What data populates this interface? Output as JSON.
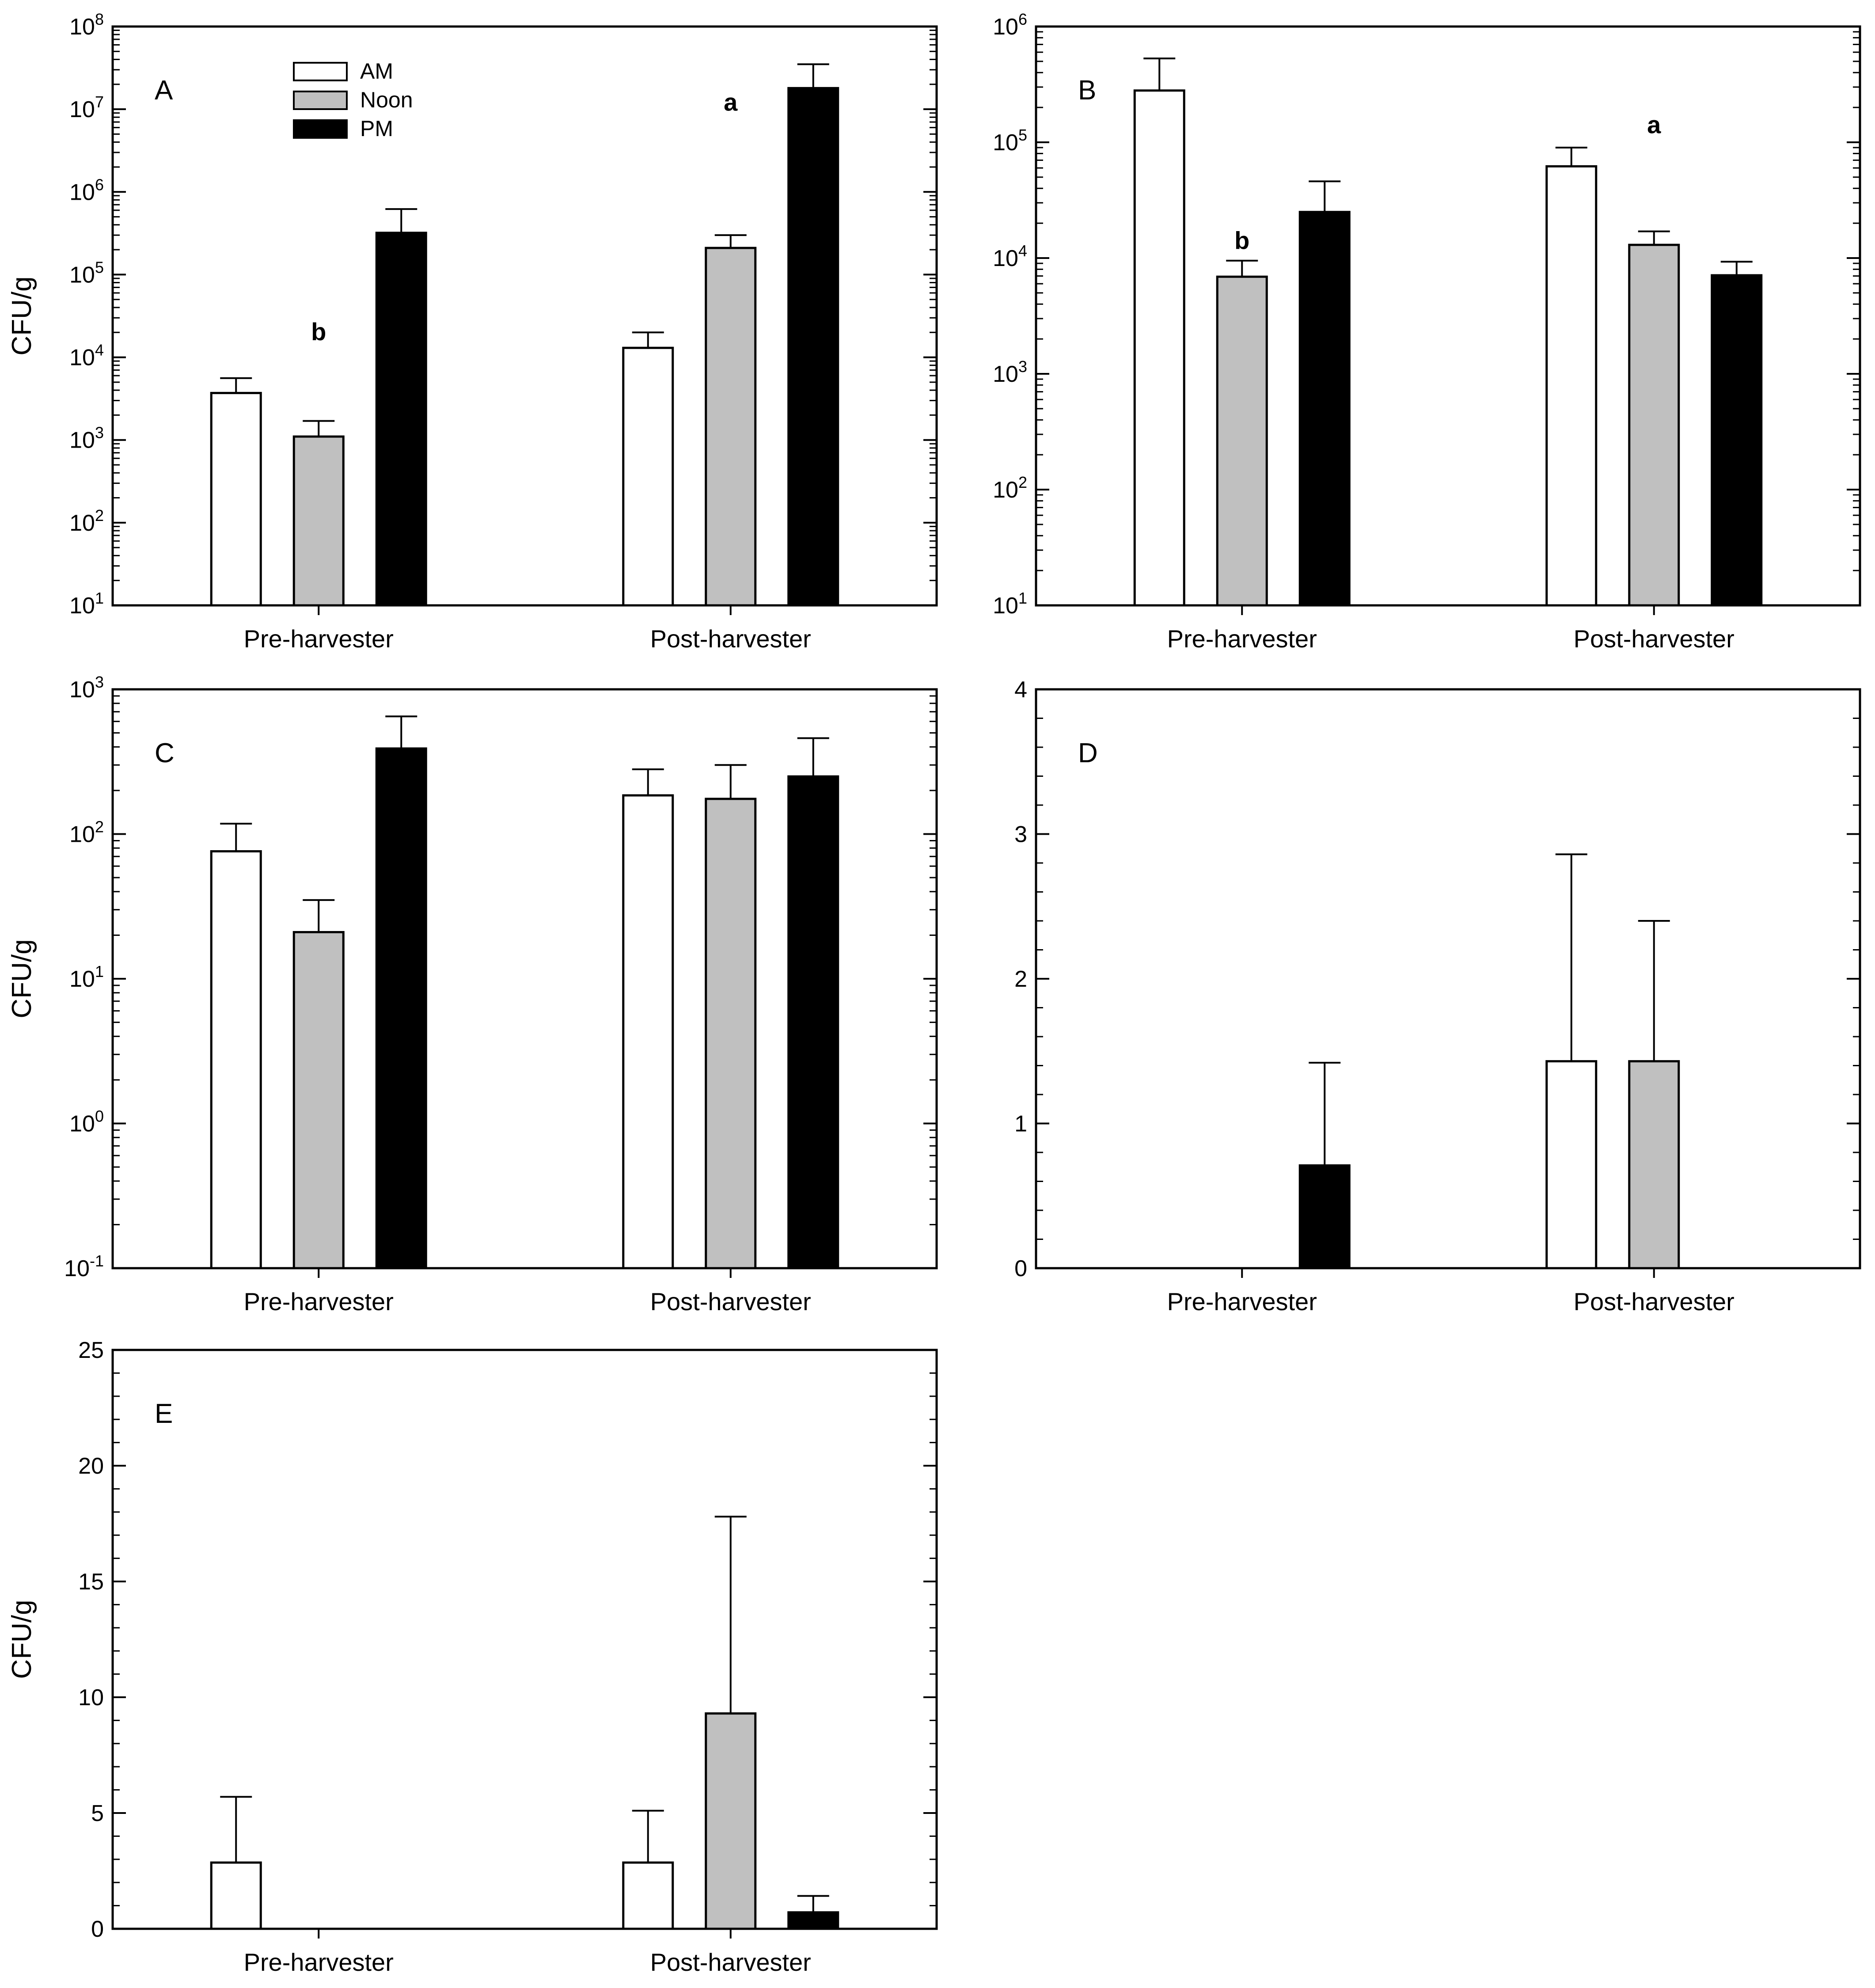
{
  "legend": {
    "position": "top-left of panel A",
    "entries": [
      {
        "label": "AM",
        "color": "#ffffff"
      },
      {
        "label": "Noon",
        "color": "#c0c0c0"
      },
      {
        "label": "PM",
        "color": "#000000"
      }
    ]
  },
  "chart_data": [
    {
      "panel": "A",
      "type": "bar",
      "scale": "log",
      "title": "A",
      "xlabel": "",
      "ylabel": "CFU/g",
      "ylim_exp": [
        1,
        8
      ],
      "y_ticks": [
        "10^1",
        "10^2",
        "10^3",
        "10^4",
        "10^5",
        "10^6",
        "10^7",
        "10^8"
      ],
      "categories": [
        "Pre-harvester",
        "Post-harvester"
      ],
      "series": [
        {
          "name": "AM",
          "values": [
            3700,
            13000
          ],
          "errors_upper": [
            5600,
            20000
          ]
        },
        {
          "name": "Noon",
          "values": [
            1100,
            210000
          ],
          "errors_upper": [
            1700,
            300000
          ]
        },
        {
          "name": "PM",
          "values": [
            320000,
            18000000
          ],
          "errors_upper": [
            620000,
            35000000
          ]
        }
      ],
      "annotations": [
        {
          "text": "b",
          "category": 0,
          "value": 20000
        },
        {
          "text": "a",
          "category": 1,
          "value": 12000000
        }
      ]
    },
    {
      "panel": "B",
      "type": "bar",
      "scale": "log",
      "title": "B",
      "xlabel": "",
      "ylabel": "",
      "ylim_exp": [
        1,
        6
      ],
      "y_ticks": [
        "10^1",
        "10^2",
        "10^3",
        "10^4",
        "10^5",
        "10^6"
      ],
      "categories": [
        "Pre-harvester",
        "Post-harvester"
      ],
      "series": [
        {
          "name": "AM",
          "values": [
            280000,
            62000
          ],
          "errors_upper": [
            530000,
            90000
          ]
        },
        {
          "name": "Noon",
          "values": [
            6900,
            13000
          ],
          "errors_upper": [
            9500,
            17000
          ]
        },
        {
          "name": "PM",
          "values": [
            25000,
            7100
          ],
          "errors_upper": [
            46000,
            9300
          ]
        }
      ],
      "annotations": [
        {
          "text": "b",
          "category": 0,
          "value": 14000
        },
        {
          "text": "a",
          "category": 1,
          "value": 140000
        }
      ]
    },
    {
      "panel": "C",
      "type": "bar",
      "scale": "log",
      "title": "C",
      "xlabel": "",
      "ylabel": "CFU/g",
      "ylim_exp": [
        -1,
        3
      ],
      "y_ticks": [
        "10^-1",
        "10^0",
        "10^1",
        "10^2",
        "10^3"
      ],
      "categories": [
        "Pre-harvester",
        "Post-harvester"
      ],
      "series": [
        {
          "name": "AM",
          "values": [
            76,
            185
          ],
          "errors_upper": [
            118,
            280
          ]
        },
        {
          "name": "Noon",
          "values": [
            21,
            175
          ],
          "errors_upper": [
            35,
            300
          ]
        },
        {
          "name": "PM",
          "values": [
            390,
            250
          ],
          "errors_upper": [
            650,
            460
          ]
        }
      ],
      "annotations": []
    },
    {
      "panel": "D",
      "type": "bar",
      "scale": "linear",
      "title": "D",
      "xlabel": "",
      "ylabel": "",
      "ylim": [
        0,
        4
      ],
      "y_ticks": [
        "0",
        "1",
        "2",
        "3",
        "4"
      ],
      "categories": [
        "Pre-harvester",
        "Post-harvester"
      ],
      "series": [
        {
          "name": "AM",
          "values": [
            0,
            1.43
          ],
          "errors_upper": [
            0,
            2.86
          ]
        },
        {
          "name": "Noon",
          "values": [
            0,
            1.43
          ],
          "errors_upper": [
            0,
            2.4
          ]
        },
        {
          "name": "PM",
          "values": [
            0.71,
            0
          ],
          "errors_upper": [
            1.42,
            0
          ]
        }
      ],
      "annotations": []
    },
    {
      "panel": "E",
      "type": "bar",
      "scale": "linear",
      "title": "E",
      "xlabel": "",
      "ylabel": "CFU/g",
      "ylim": [
        0,
        25
      ],
      "y_ticks": [
        "0",
        "5",
        "10",
        "15",
        "20",
        "25"
      ],
      "categories": [
        "Pre-harvester",
        "Post-harvester"
      ],
      "series": [
        {
          "name": "AM",
          "values": [
            2.86,
            2.86
          ],
          "errors_upper": [
            5.7,
            5.1
          ]
        },
        {
          "name": "Noon",
          "values": [
            0,
            9.3
          ],
          "errors_upper": [
            0,
            17.8
          ]
        },
        {
          "name": "PM",
          "values": [
            0,
            0.71
          ],
          "errors_upper": [
            0,
            1.42
          ]
        }
      ],
      "annotations": []
    }
  ]
}
